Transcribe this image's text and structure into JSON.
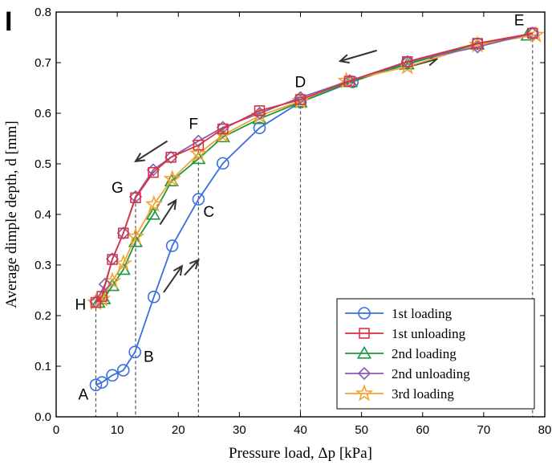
{
  "panel_label": "I",
  "chart_data": {
    "type": "line",
    "xlabel": "Pressure load, Δp [kPa]",
    "ylabel": "Average dimple depth,  d [mm]",
    "xlim": [
      0,
      80
    ],
    "ylim": [
      0,
      0.8
    ],
    "xticks": [
      "0",
      "10",
      "20",
      "30",
      "40",
      "50",
      "60",
      "70",
      "80"
    ],
    "yticks": [
      "0.0",
      "0.1",
      "0.2",
      "0.3",
      "0.4",
      "0.5",
      "0.6",
      "0.7",
      "0.8"
    ],
    "grid": false,
    "legend_position": "bottom-right",
    "series": [
      {
        "name": "1st loading",
        "color": "#3a6fe0",
        "marker": "circle",
        "x": [
          6.5,
          7.5,
          9.2,
          11.0,
          12.9,
          16.0,
          19.0,
          23.3,
          27.3,
          33.3,
          40.0,
          48.5,
          57.5,
          69.0,
          78.0
        ],
        "y": [
          0.063,
          0.068,
          0.082,
          0.092,
          0.128,
          0.237,
          0.338,
          0.43,
          0.501,
          0.571,
          0.622,
          0.662,
          0.7,
          0.737,
          0.758
        ]
      },
      {
        "name": "1st unloading",
        "color": "#d8333e",
        "marker": "square",
        "x": [
          78.0,
          69.0,
          57.5,
          48.0,
          40.0,
          33.3,
          27.3,
          23.3,
          18.8,
          15.9,
          13.0,
          11.0,
          9.2,
          7.5,
          6.5
        ],
        "y": [
          0.758,
          0.738,
          0.702,
          0.663,
          0.627,
          0.605,
          0.569,
          0.537,
          0.513,
          0.483,
          0.433,
          0.363,
          0.311,
          0.238,
          0.226
        ]
      },
      {
        "name": "2nd loading",
        "color": "#1a9a3c",
        "marker": "triangle",
        "x": [
          6.9,
          7.8,
          9.2,
          11.0,
          13.0,
          15.9,
          18.9,
          23.3,
          27.3,
          33.3,
          40.0,
          48.2,
          57.5,
          69.0,
          77.2
        ],
        "y": [
          0.226,
          0.233,
          0.259,
          0.291,
          0.346,
          0.4,
          0.466,
          0.51,
          0.553,
          0.589,
          0.622,
          0.662,
          0.697,
          0.736,
          0.754
        ]
      },
      {
        "name": "2nd unloading",
        "color": "#8a5bb5",
        "marker": "diamond",
        "x": [
          78.0,
          69.0,
          57.5,
          48.0,
          40.0,
          33.3,
          27.3,
          23.3,
          18.8,
          15.9,
          13.0,
          11.0,
          9.2,
          8.0,
          6.5
        ],
        "y": [
          0.758,
          0.731,
          0.702,
          0.664,
          0.631,
          0.6,
          0.572,
          0.545,
          0.513,
          0.488,
          0.435,
          0.363,
          0.312,
          0.262,
          0.227
        ]
      },
      {
        "name": "3rd loading",
        "color": "#f4a233",
        "marker": "star",
        "x": [
          6.5,
          7.5,
          9.2,
          11.0,
          13.0,
          16.0,
          19.0,
          23.3,
          27.3,
          33.3,
          40.0,
          47.5,
          57.5,
          69.0,
          78.5
        ],
        "y": [
          0.226,
          0.233,
          0.268,
          0.303,
          0.356,
          0.42,
          0.47,
          0.52,
          0.557,
          0.595,
          0.624,
          0.664,
          0.692,
          0.735,
          0.755
        ]
      }
    ],
    "annotations": [
      {
        "label": "A",
        "x": 6.5,
        "y": 0.063
      },
      {
        "label": "B",
        "x": 13.0,
        "y": 0.128
      },
      {
        "label": "C",
        "x": 23.3,
        "y": 0.43
      },
      {
        "label": "D",
        "x": 40.0,
        "y": 0.626
      },
      {
        "label": "E",
        "x": 78.0,
        "y": 0.758
      },
      {
        "label": "F",
        "x": 23.3,
        "y": 0.537
      },
      {
        "label": "G",
        "x": 13.0,
        "y": 0.433
      },
      {
        "label": "H",
        "x": 6.5,
        "y": 0.226
      }
    ],
    "reference_lines_x": [
      6.5,
      13.0,
      23.3,
      40.0,
      78.0
    ]
  }
}
